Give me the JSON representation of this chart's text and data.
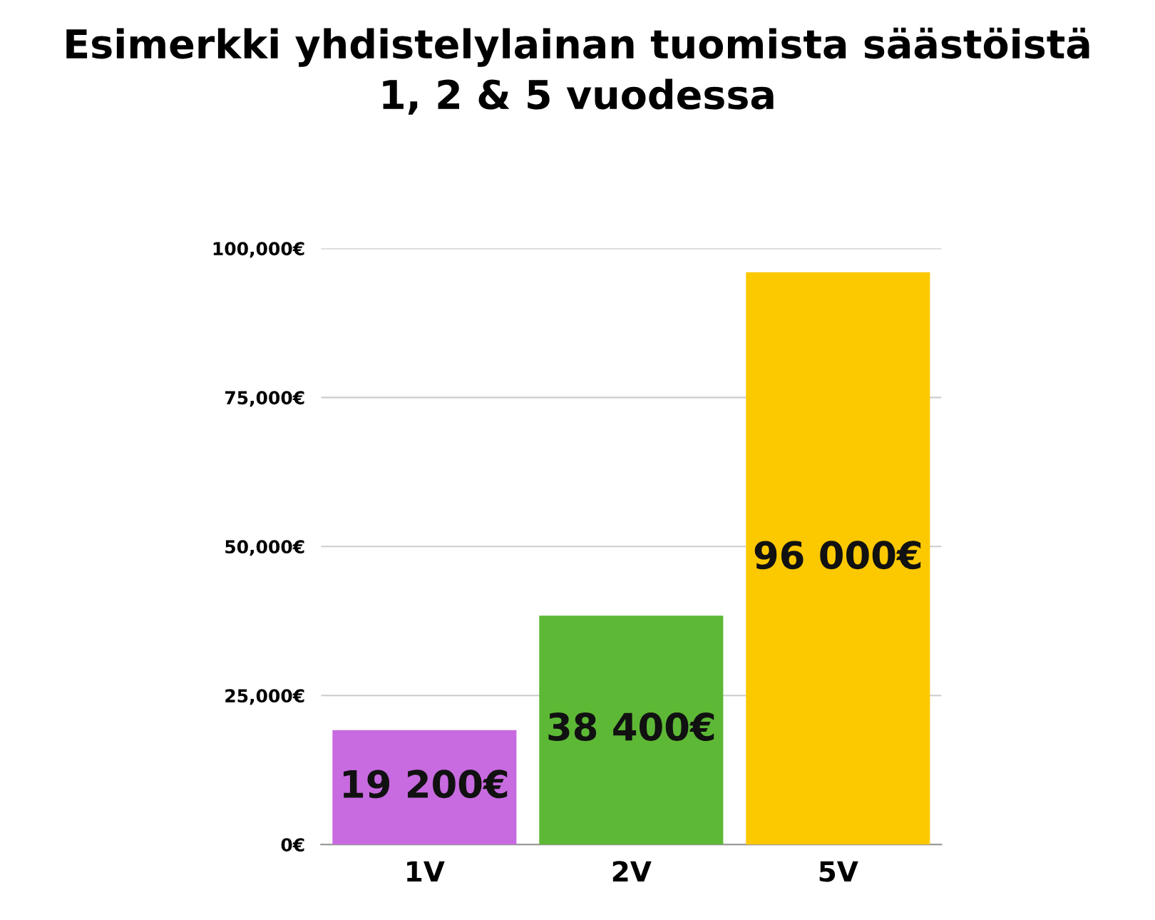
{
  "chart_data": {
    "type": "bar",
    "title": "Esimerkki yhdistelylainan tuomista säästöistä\n1, 2 & 5 vuodessa",
    "categories": [
      "1V",
      "2V",
      "5V"
    ],
    "values": [
      19200,
      38400,
      96000
    ],
    "colors": [
      "#c86be0",
      "#5db836",
      "#fcc800"
    ],
    "value_labels": [
      "19 200€",
      "38 400€",
      "96 000€"
    ],
    "ylim": [
      0,
      100000
    ],
    "yticks": [
      {
        "value": 0,
        "label": "0€"
      },
      {
        "value": 25000,
        "label": "25,000€"
      },
      {
        "value": 50000,
        "label": "50,000€"
      },
      {
        "value": 75000,
        "label": "75,000€"
      },
      {
        "value": 100000,
        "label": "100,000€"
      }
    ],
    "grid": "y",
    "legend": false
  }
}
